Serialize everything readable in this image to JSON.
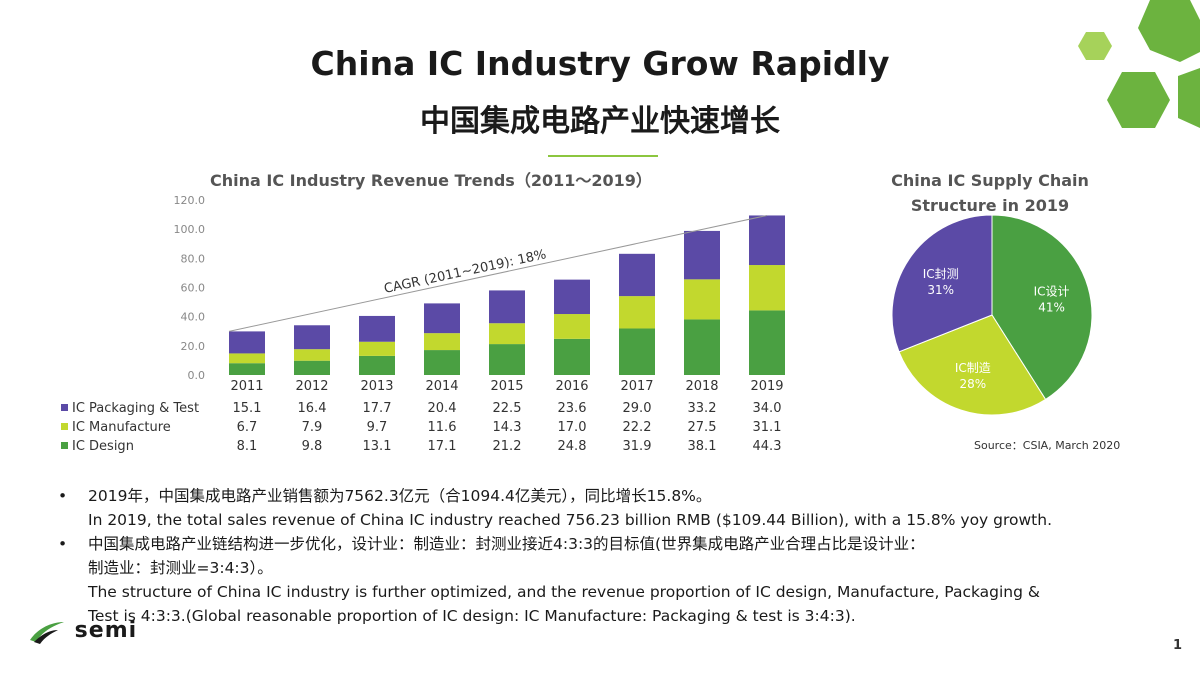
{
  "slide": {
    "title_en": "China IC Industry Grow Rapidly",
    "title_zh": "中国集成电路产业快速增长",
    "page_number": "1",
    "logo_text": "semi",
    "colors": {
      "accent_green": "#8cc63f",
      "hex_green": "#6cb33f"
    }
  },
  "chart_data": [
    {
      "type": "bar",
      "stacked": true,
      "title": "China IC Industry Revenue Trends（2011～2019）",
      "categories": [
        "2011",
        "2012",
        "2013",
        "2014",
        "2015",
        "2016",
        "2017",
        "2018",
        "2019"
      ],
      "yticks": [
        "120.0",
        "100.0",
        "80.0",
        "60.0",
        "40.0",
        "20.0",
        "0.0"
      ],
      "ylim": [
        0,
        120
      ],
      "series": [
        {
          "name": "IC Packaging & Test",
          "color": "#5b4aa6",
          "values": [
            15.1,
            16.4,
            17.7,
            20.4,
            22.5,
            23.6,
            29.0,
            33.2,
            34.0
          ],
          "labels": [
            "15.1",
            "16.4",
            "17.7",
            "20.4",
            "22.5",
            "23.6",
            "29.0",
            "33.2",
            "34.0"
          ]
        },
        {
          "name": "IC Manufacture",
          "color": "#c2d82e",
          "values": [
            6.7,
            7.9,
            9.7,
            11.6,
            14.3,
            17.0,
            22.2,
            27.5,
            31.1
          ],
          "labels": [
            "6.7",
            "7.9",
            "9.7",
            "11.6",
            "14.3",
            "17.0",
            "22.2",
            "27.5",
            "31.1"
          ]
        },
        {
          "name": "IC Design",
          "color": "#4aa042",
          "values": [
            8.1,
            9.8,
            13.1,
            17.1,
            21.2,
            24.8,
            31.9,
            38.1,
            44.3
          ],
          "labels": [
            "8.1",
            "9.8",
            "13.1",
            "17.1",
            "21.2",
            "24.8",
            "31.9",
            "38.1",
            "44.3"
          ]
        }
      ],
      "annotation": "CAGR (2011~2019): 18%",
      "legend_placement": "table-below"
    },
    {
      "type": "pie",
      "title_line1": "China IC Supply Chain",
      "title_line2": "Structure in 2019",
      "slices": [
        {
          "label": "IC设计",
          "pct": "41%",
          "value": 41,
          "color": "#4aa042"
        },
        {
          "label": "IC制造",
          "pct": "28%",
          "value": 28,
          "color": "#c2d82e"
        },
        {
          "label": "IC封测",
          "pct": "31%",
          "value": 31,
          "color": "#5b4aa6"
        }
      ],
      "source": "Source：CSIA, March 2020"
    }
  ],
  "bullets": [
    {
      "zh": "2019年，中国集成电路产业销售额为7562.3亿元（合1094.4亿美元），同比增长15.8%。",
      "en": "In 2019, the total sales revenue of China IC industry reached 756.23 billion RMB ($109.44 Billion), with a 15.8% yoy growth."
    },
    {
      "zh_line1": "中国集成电路产业链结构进一步优化，设计业：制造业：封测业接近4:3:3的目标值(世界集成电路产业合理占比是设计业：",
      "zh_line2": "制造业：封测业=3:4:3）。",
      "en_line1": "The structure of China IC industry is further optimized, and the revenue proportion of IC design, Manufacture, Packaging &",
      "en_line2": "Test is 4:3:3.(Global reasonable proportion of IC design: IC Manufacture: Packaging & test is 3:4:3)."
    }
  ],
  "bullet_symbol": "•"
}
